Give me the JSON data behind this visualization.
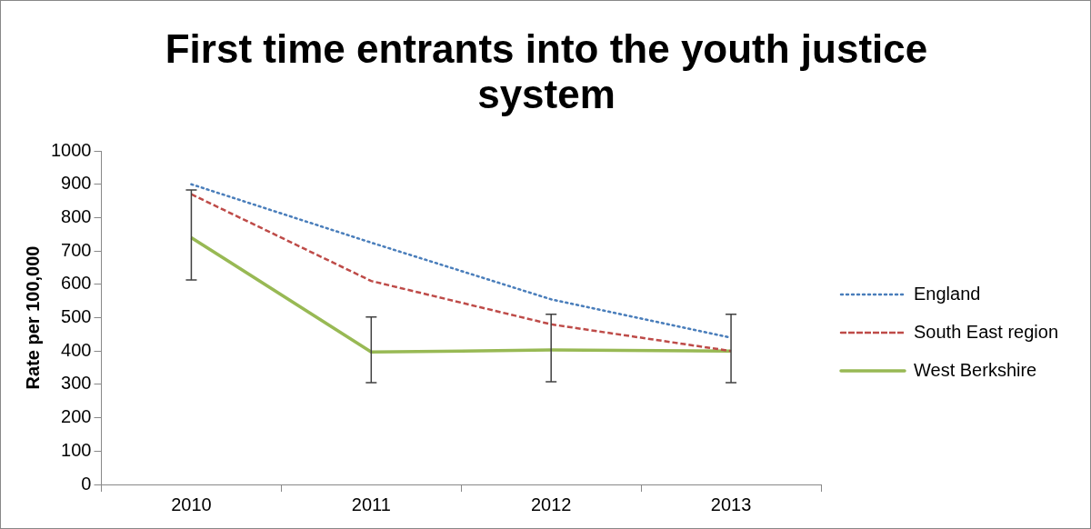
{
  "chart_data": {
    "type": "line",
    "title": "First time entrants into the youth justice system",
    "ylabel": "Rate per 100,000",
    "categories": [
      "2010",
      "2011",
      "2012",
      "2013"
    ],
    "series": [
      {
        "name": "England",
        "color": "#4a7ebb",
        "line_style": "dotted",
        "values": [
          900,
          725,
          555,
          440
        ]
      },
      {
        "name": "South East region",
        "color": "#be4b48",
        "line_style": "dashed",
        "values": [
          870,
          610,
          480,
          400
        ]
      },
      {
        "name": "West Berkshire",
        "color": "#98b954",
        "line_style": "solid",
        "values": [
          740,
          397,
          403,
          400
        ],
        "errors": [
          [
            613,
            883
          ],
          [
            305,
            502
          ],
          [
            308,
            510
          ],
          [
            305,
            510
          ]
        ]
      }
    ],
    "ylim": [
      0,
      1000
    ],
    "yticks": [
      0,
      100,
      200,
      300,
      400,
      500,
      600,
      700,
      800,
      900,
      1000
    ],
    "grid": false,
    "legend": "right",
    "marker": "none"
  }
}
